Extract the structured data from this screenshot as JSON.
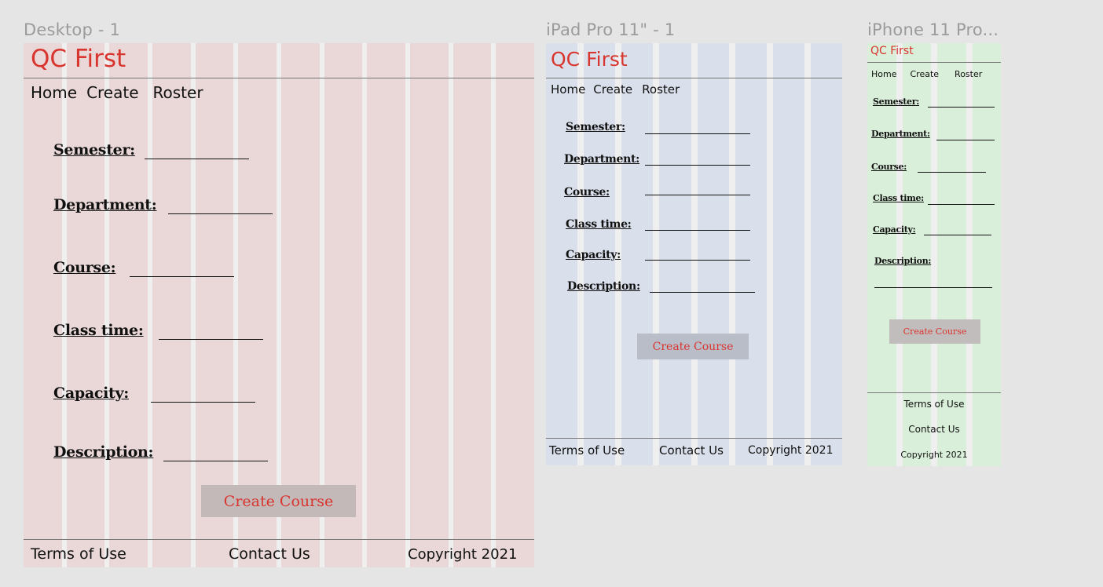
{
  "frames": {
    "desktop": {
      "label": "Desktop - 1"
    },
    "ipad": {
      "label": "iPad Pro 11\" - 1"
    },
    "iphone": {
      "label": "iPhone 11 Pro..."
    }
  },
  "app": {
    "logo": "QC First",
    "nav": {
      "home": "Home",
      "create": "Create",
      "roster": "Roster"
    },
    "form": {
      "semester": "Semester:",
      "department": "Department:",
      "course": "Course:",
      "class_time": "Class time:",
      "capacity": "Capacity:",
      "description": "Description:"
    },
    "create_button": "Create Course",
    "footer": {
      "terms": "Terms of Use",
      "contact": "Contact Us",
      "copyright": "Copyright 2021"
    }
  },
  "colors": {
    "canvas": "#e5e5e5",
    "desktop_grid": "#ead8d8",
    "ipad_grid": "#d9dfeb",
    "iphone_grid": "#d9efd9",
    "grid_gutter": "#efefef",
    "accent_red": "#d9352f",
    "button_gray": "#c4b9b9"
  }
}
